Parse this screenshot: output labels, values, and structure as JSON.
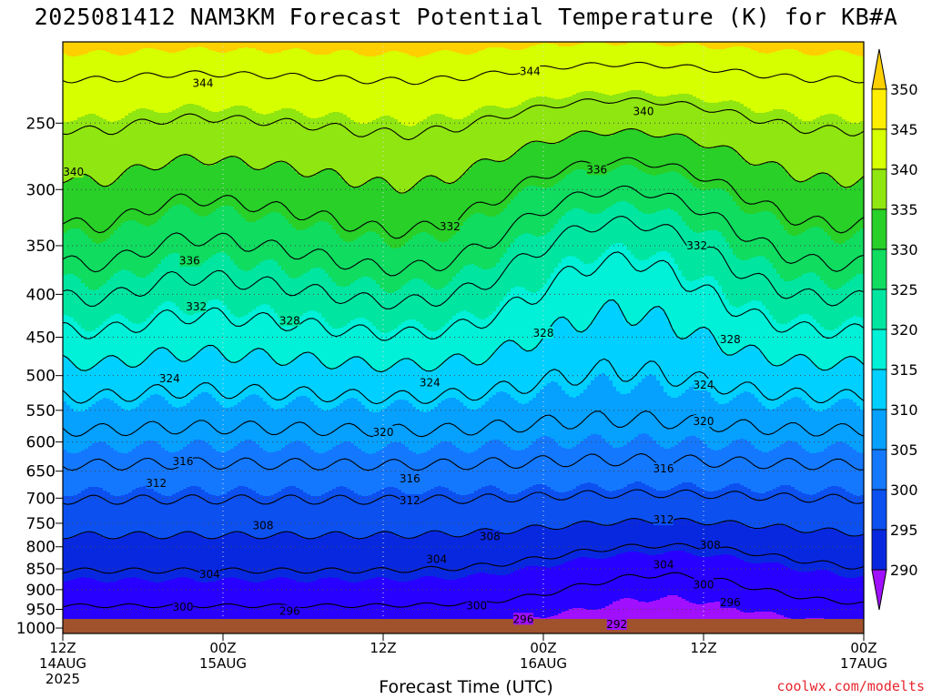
{
  "header": {
    "title": "2025081412 NAM3KM Forecast Potential Temperature (K) for KB#A"
  },
  "footer": {
    "credit": "coolwx.com/modelts"
  },
  "chart_data": {
    "type": "contour",
    "title": "2025081412 NAM3KM Forecast Potential Temperature (K) for KB#A",
    "xlabel": "Forecast Time (UTC)",
    "ylabel": "",
    "units": "K",
    "x_range_hours": [
      0,
      60
    ],
    "x_ticks": [
      {
        "hour": 0,
        "lines": [
          "12Z",
          "14AUG",
          "2025"
        ]
      },
      {
        "hour": 12,
        "lines": [
          "00Z",
          "15AUG"
        ]
      },
      {
        "hour": 24,
        "lines": [
          "12Z"
        ]
      },
      {
        "hour": 36,
        "lines": [
          "00Z",
          "16AUG"
        ]
      },
      {
        "hour": 48,
        "lines": [
          "12Z"
        ]
      },
      {
        "hour": 60,
        "lines": [
          "00Z",
          "17AUG"
        ]
      }
    ],
    "y_axis": {
      "scale": "log-pressure",
      "units": "hPa",
      "range": [
        1015,
        200
      ]
    },
    "y_ticks": [
      1000,
      950,
      900,
      850,
      800,
      750,
      700,
      650,
      600,
      550,
      500,
      450,
      400,
      350,
      300,
      250
    ],
    "colorbar": {
      "levels": [
        290,
        295,
        300,
        305,
        310,
        315,
        320,
        325,
        330,
        335,
        340,
        345,
        350
      ],
      "colors": [
        "#a010ff",
        "#2800ff",
        "#0828e0",
        "#0c50f0",
        "#1478ff",
        "#06a0ff",
        "#00d0ff",
        "#00f0d8",
        "#00e6a0",
        "#10dc60",
        "#28d028",
        "#90e610",
        "#d6ff00",
        "#ffee00",
        "#ffd000"
      ]
    },
    "ground_color": "#a0522d",
    "contour_interval": 4,
    "contour_labels": [
      {
        "value": 344,
        "hour": 10.5,
        "hpa": 224
      },
      {
        "value": 344,
        "hour": 35,
        "hpa": 217
      },
      {
        "value": 340,
        "hour": 0.8,
        "hpa": 286
      },
      {
        "value": 340,
        "hour": 43.5,
        "hpa": 242
      },
      {
        "value": 336,
        "hour": 9.5,
        "hpa": 365
      },
      {
        "value": 336,
        "hour": 40,
        "hpa": 284
      },
      {
        "value": 332,
        "hour": 10,
        "hpa": 414
      },
      {
        "value": 332,
        "hour": 29,
        "hpa": 332
      },
      {
        "value": 332,
        "hour": 47.5,
        "hpa": 350
      },
      {
        "value": 328,
        "hour": 17,
        "hpa": 430
      },
      {
        "value": 328,
        "hour": 36,
        "hpa": 445
      },
      {
        "value": 328,
        "hour": 50,
        "hpa": 453
      },
      {
        "value": 324,
        "hour": 8,
        "hpa": 504
      },
      {
        "value": 324,
        "hour": 27.5,
        "hpa": 510
      },
      {
        "value": 324,
        "hour": 48,
        "hpa": 513
      },
      {
        "value": 320,
        "hour": 24,
        "hpa": 584
      },
      {
        "value": 320,
        "hour": 48,
        "hpa": 567
      },
      {
        "value": 316,
        "hour": 9,
        "hpa": 633
      },
      {
        "value": 316,
        "hour": 26,
        "hpa": 664
      },
      {
        "value": 316,
        "hour": 45,
        "hpa": 646
      },
      {
        "value": 312,
        "hour": 7,
        "hpa": 672
      },
      {
        "value": 312,
        "hour": 26,
        "hpa": 705
      },
      {
        "value": 312,
        "hour": 45,
        "hpa": 743
      },
      {
        "value": 308,
        "hour": 15,
        "hpa": 755
      },
      {
        "value": 308,
        "hour": 32,
        "hpa": 778
      },
      {
        "value": 308,
        "hour": 48.5,
        "hpa": 797
      },
      {
        "value": 304,
        "hour": 11,
        "hpa": 863
      },
      {
        "value": 304,
        "hour": 28,
        "hpa": 828
      },
      {
        "value": 304,
        "hour": 45,
        "hpa": 840
      },
      {
        "value": 300,
        "hour": 9,
        "hpa": 944
      },
      {
        "value": 300,
        "hour": 31,
        "hpa": 940
      },
      {
        "value": 300,
        "hour": 48,
        "hpa": 888
      },
      {
        "value": 296,
        "hour": 17,
        "hpa": 955
      },
      {
        "value": 296,
        "hour": 34.5,
        "hpa": 976
      },
      {
        "value": 296,
        "hour": 50,
        "hpa": 932
      },
      {
        "value": 292,
        "hour": 41.5,
        "hpa": 990
      }
    ]
  }
}
